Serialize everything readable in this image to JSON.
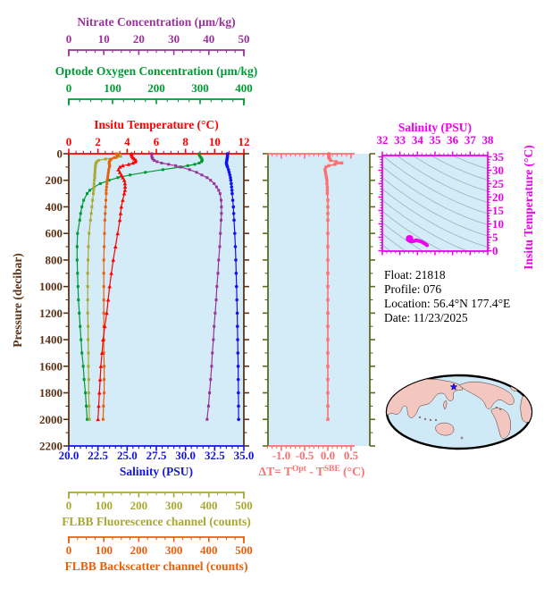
{
  "info": {
    "lines": [
      "Float:  21818",
      "Profile:  076",
      "Location:  56.4°N  177.4°E",
      "Date:  11/23/2025"
    ]
  },
  "colors": {
    "nitrate": "#993399",
    "oxygen": "#009933",
    "temperature": "#ff0000",
    "pressure": "#5c3317",
    "salinity": "#1212ee",
    "fluorescence": "#a8a832",
    "backscatter": "#e8600d",
    "delta_t": "#ff6f6f",
    "delta_side_axis": "#5c6b1f",
    "ts_frame": "#ee00ee",
    "panel_bg": "#d4ecf7",
    "contour": "#9ab0bc",
    "map_ocean": "#cfe9f6",
    "map_land": "#f3c6c0",
    "marker_blue": "#1a1aee",
    "info_text": "#000000"
  },
  "chart_data": [
    {
      "id": "main-profile",
      "type": "line",
      "title": "Float profile: temperature, salinity, oxygen, nitrate, FLBB channels vs pressure",
      "grid": false,
      "y_axis": {
        "label": "Pressure (decibar)",
        "range": [
          0,
          2200
        ],
        "major_tick": 200,
        "minor_tick": 100,
        "tick_labels": [
          "0",
          "200",
          "400",
          "600",
          "800",
          "1000",
          "1200",
          "1400",
          "1600",
          "1800",
          "2000",
          "2200"
        ]
      },
      "x_axes": {
        "temperature": {
          "label": "Insitu Temperature (°C)",
          "range": [
            0,
            12
          ],
          "major_tick": 2,
          "minor_tick": 0.5,
          "tick_labels": [
            "0",
            "2",
            "4",
            "6",
            "8",
            "10",
            "12"
          ],
          "position": "plot-top"
        },
        "salinity": {
          "label": "Salinity (PSU)",
          "range": [
            20,
            35
          ],
          "major_tick": 2.5,
          "minor_tick": 0.5,
          "tick_labels": [
            "20.0",
            "22.5",
            "25.0",
            "27.5",
            "30.0",
            "32.5",
            "35.0"
          ],
          "position": "plot-bottom"
        },
        "nitrate": {
          "label": "Nitrate Concentration (µm/kg)",
          "range": [
            0,
            50
          ],
          "major_tick": 10,
          "minor_tick": 2.5,
          "tick_labels": [
            "0",
            "10",
            "20",
            "30",
            "40",
            "50"
          ],
          "position": "detached-top-1"
        },
        "oxygen": {
          "label": "Optode Oxygen Concentration (µm/kg)",
          "range": [
            0,
            400
          ],
          "major_tick": 100,
          "minor_tick": 25,
          "tick_labels": [
            "0",
            "100",
            "200",
            "300",
            "400"
          ],
          "position": "detached-top-2"
        },
        "fluorescence": {
          "label": "FLBB Fluorescence channel (counts)",
          "range": [
            0,
            500
          ],
          "major_tick": 100,
          "minor_tick": 25,
          "tick_labels": [
            "0",
            "100",
            "200",
            "300",
            "400",
            "500"
          ],
          "position": "detached-bottom-1"
        },
        "backscatter": {
          "label": "FLBB Backscatter channel (counts)",
          "range": [
            0,
            500
          ],
          "major_tick": 100,
          "minor_tick": 25,
          "tick_labels": [
            "0",
            "100",
            "200",
            "300",
            "400",
            "500"
          ],
          "position": "detached-bottom-2"
        }
      },
      "pressure_levels": [
        0,
        10,
        20,
        30,
        40,
        50,
        60,
        70,
        80,
        90,
        100,
        120,
        140,
        160,
        180,
        200,
        225,
        250,
        275,
        300,
        350,
        400,
        450,
        500,
        600,
        700,
        800,
        900,
        1000,
        1100,
        1200,
        1300,
        1400,
        1500,
        1600,
        1700,
        1800,
        1900,
        2000
      ],
      "series": [
        {
          "name": "Insitu Temperature",
          "axis": "temperature",
          "marker": "triangle",
          "values": [
            4.3,
            4.3,
            4.35,
            4.4,
            4.5,
            4.6,
            4.55,
            4.4,
            4.1,
            3.7,
            3.5,
            3.4,
            3.5,
            3.6,
            3.7,
            3.8,
            3.85,
            3.86,
            3.85,
            3.8,
            3.7,
            3.6,
            3.55,
            3.5,
            3.35,
            3.2,
            3.05,
            2.92,
            2.8,
            2.7,
            2.6,
            2.47,
            2.35,
            2.28,
            2.2,
            2.15,
            2.1,
            2.05,
            2.0
          ]
        },
        {
          "name": "Salinity",
          "axis": "salinity",
          "marker": "circle",
          "values": [
            33.6,
            33.6,
            33.6,
            33.58,
            33.56,
            33.54,
            33.52,
            33.5,
            33.52,
            33.56,
            33.6,
            33.68,
            33.74,
            33.8,
            33.85,
            33.88,
            33.92,
            33.95,
            33.98,
            34.0,
            34.05,
            34.1,
            34.13,
            34.16,
            34.22,
            34.27,
            34.31,
            34.34,
            34.37,
            34.4,
            34.43,
            34.45,
            34.47,
            34.49,
            34.51,
            34.52,
            34.53,
            34.54,
            34.55
          ]
        },
        {
          "name": "Nitrate Concentration",
          "axis": "nitrate",
          "marker": "square",
          "values": [
            23.7,
            23.7,
            23.7,
            23.8,
            24.0,
            24.4,
            25.2,
            26.5,
            28.5,
            30.5,
            32.0,
            34.5,
            36.5,
            38.0,
            39.5,
            40.5,
            41.5,
            42.2,
            42.8,
            43.2,
            43.5,
            43.6,
            43.6,
            43.5,
            43.3,
            43.1,
            42.8,
            42.6,
            42.3,
            42.1,
            41.8,
            41.5,
            41.3,
            41.0,
            40.8,
            40.5,
            40.2,
            39.9,
            39.5
          ]
        },
        {
          "name": "Optode Oxygen Concentration",
          "axis": "oxygen",
          "marker": "square",
          "values": [
            298,
            298,
            300,
            302,
            304,
            305,
            303,
            298,
            288,
            272,
            255,
            215,
            175,
            140,
            112,
            92,
            72,
            58,
            48,
            42,
            34,
            30,
            27,
            25,
            20,
            19,
            19,
            20,
            21,
            22,
            24,
            26,
            28,
            30,
            33,
            35,
            38,
            40,
            42
          ]
        },
        {
          "name": "FLBB Fluorescence channel",
          "axis": "fluorescence",
          "marker": "square",
          "values": [
            140,
            146,
            148,
            135,
            105,
            85,
            80,
            78,
            77,
            76,
            76,
            75,
            75,
            74,
            74,
            73,
            72,
            72,
            71,
            70,
            68,
            66,
            64,
            62,
            58,
            56,
            55,
            54,
            54,
            54,
            54,
            55,
            55,
            56,
            56,
            57,
            57,
            58,
            59
          ]
        },
        {
          "name": "FLBB Backscatter channel",
          "axis": "backscatter",
          "marker": "square",
          "values": [
            135,
            140,
            138,
            130,
            122,
            118,
            116,
            115,
            116,
            117,
            116,
            114,
            113,
            112,
            111,
            110,
            109,
            108,
            107,
            107,
            106,
            105,
            104,
            103,
            102,
            101,
            100,
            100,
            100,
            100,
            100,
            100,
            100,
            100,
            101,
            101,
            101,
            99,
            98
          ]
        }
      ]
    },
    {
      "id": "delta-t",
      "type": "line",
      "title": "Optode minus SBE temperature difference vs pressure",
      "x_axis": {
        "label": "ΔT= T^Opt - T^SBE (°C)",
        "label_parts": {
          "p1": "ΔT= T",
          "sup1": "Opt",
          "p2": " - T",
          "sup2": "SBE",
          "p3": " (°C)"
        },
        "range": [
          -1.31,
          0.56
        ],
        "major_tick": 0.5,
        "minor_tick": 0.1,
        "tick_values": [
          -1.0,
          -0.5,
          0.0,
          0.5
        ],
        "tick_labels": [
          "-1.0",
          "-0.5",
          "0.0",
          "0.5"
        ]
      },
      "y_axis": {
        "range": [
          0,
          2200
        ],
        "major_tick": 200,
        "minor_tick": 100
      },
      "pressure_levels": [
        0,
        10,
        20,
        30,
        40,
        50,
        60,
        70,
        80,
        90,
        100,
        120,
        140,
        160,
        180,
        200,
        225,
        250,
        275,
        300,
        350,
        400,
        450,
        500,
        600,
        700,
        800,
        900,
        1000,
        1100,
        1200,
        1300,
        1400,
        1500,
        1600,
        1700,
        1800,
        1900,
        2000
      ],
      "values": [
        0.02,
        0.02,
        0.03,
        0.03,
        0.04,
        0.06,
        0.18,
        0.3,
        0.15,
        0.02,
        -0.04,
        -0.06,
        -0.05,
        -0.04,
        -0.03,
        -0.02,
        -0.02,
        -0.01,
        -0.01,
        -0.01,
        0,
        0,
        0,
        0,
        0,
        0,
        0,
        0,
        0,
        0,
        0,
        0,
        0,
        0,
        0,
        0,
        0,
        0,
        0
      ]
    },
    {
      "id": "ts-diagram",
      "type": "scatter",
      "title": "Temperature-Salinity diagram with density contours",
      "x_axis": {
        "label": "Salinity (PSU)",
        "range": [
          32,
          38
        ],
        "major_tick": 1,
        "minor_tick": 0.25,
        "tick_labels": [
          "32",
          "33",
          "34",
          "35",
          "36",
          "37",
          "38"
        ]
      },
      "y_axis": {
        "label": "Insitu Temperature (°C)",
        "range": [
          0,
          35
        ],
        "major_tick": 5,
        "minor_tick": 1,
        "tick_labels": [
          "0",
          "5",
          "10",
          "15",
          "20",
          "25",
          "30",
          "35"
        ]
      },
      "background": "gray isopycnal-style contour curves on light blue",
      "points": [
        [
          33.6,
          4.3
        ],
        [
          33.6,
          4.3
        ],
        [
          33.6,
          4.35
        ],
        [
          33.58,
          4.4
        ],
        [
          33.56,
          4.5
        ],
        [
          33.54,
          4.6
        ],
        [
          33.52,
          4.55
        ],
        [
          33.5,
          4.4
        ],
        [
          33.52,
          4.1
        ],
        [
          33.56,
          3.7
        ],
        [
          33.6,
          3.5
        ],
        [
          33.68,
          3.4
        ],
        [
          33.74,
          3.5
        ],
        [
          33.8,
          3.6
        ],
        [
          33.85,
          3.7
        ],
        [
          33.88,
          3.8
        ],
        [
          33.92,
          3.85
        ],
        [
          33.95,
          3.86
        ],
        [
          33.98,
          3.85
        ],
        [
          34.0,
          3.8
        ],
        [
          34.05,
          3.7
        ],
        [
          34.1,
          3.6
        ],
        [
          34.13,
          3.55
        ],
        [
          34.16,
          3.5
        ],
        [
          34.22,
          3.35
        ],
        [
          34.27,
          3.2
        ],
        [
          34.31,
          3.05
        ],
        [
          34.34,
          2.92
        ],
        [
          34.37,
          2.8
        ],
        [
          34.4,
          2.7
        ],
        [
          34.43,
          2.6
        ],
        [
          34.45,
          2.47
        ],
        [
          34.47,
          2.35
        ],
        [
          34.49,
          2.28
        ],
        [
          34.51,
          2.2
        ],
        [
          34.52,
          2.15
        ],
        [
          34.53,
          2.1
        ],
        [
          34.54,
          2.05
        ],
        [
          34.55,
          2.0
        ]
      ]
    },
    {
      "id": "location-map",
      "type": "map",
      "title": "Pacific-centered world map with float position",
      "marker": {
        "label": "float position",
        "location": "56.4°N 177.4°E"
      }
    }
  ]
}
